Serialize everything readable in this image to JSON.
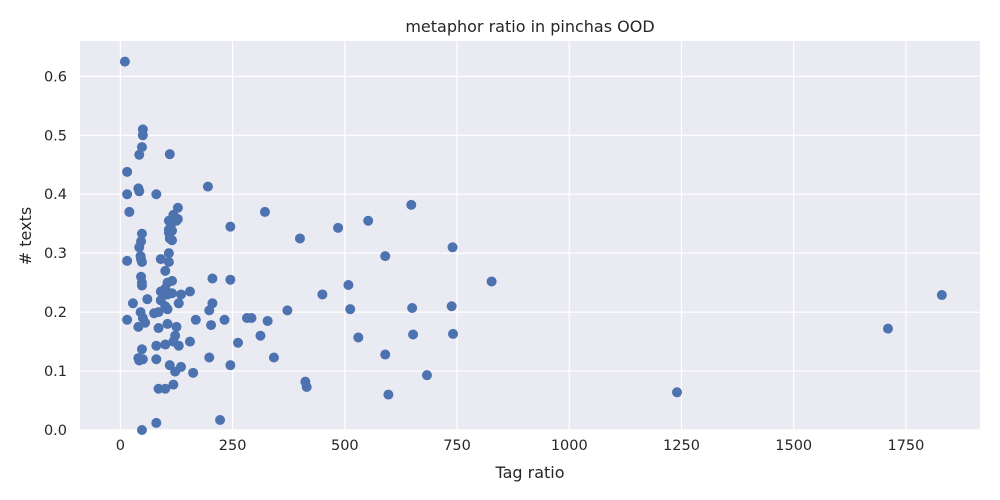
{
  "chart_data": {
    "type": "scatter",
    "title": "metaphor ratio in pinchas OOD",
    "xlabel": "Tag ratio",
    "ylabel": "# texts",
    "xlim": [
      -90,
      1915
    ],
    "ylim": [
      0,
      0.66
    ],
    "xticks": [
      0,
      250,
      500,
      750,
      1000,
      1250,
      1500,
      1750
    ],
    "yticks": [
      0.0,
      0.1,
      0.2,
      0.3,
      0.4,
      0.5,
      0.6
    ],
    "ytick_labels": [
      "0.0",
      "0.1",
      "0.2",
      "0.3",
      "0.4",
      "0.5",
      "0.6"
    ],
    "grid": true,
    "background": "#eaeaf2",
    "marker_color": "#4c72b0",
    "points": [
      [
        10,
        0.625
      ],
      [
        15,
        0.438
      ],
      [
        15,
        0.4
      ],
      [
        20,
        0.37
      ],
      [
        15,
        0.287
      ],
      [
        15,
        0.187
      ],
      [
        28,
        0.215
      ],
      [
        40,
        0.41
      ],
      [
        42,
        0.405
      ],
      [
        42,
        0.467
      ],
      [
        48,
        0.48
      ],
      [
        50,
        0.51
      ],
      [
        50,
        0.5
      ],
      [
        48,
        0.333
      ],
      [
        46,
        0.32
      ],
      [
        42,
        0.31
      ],
      [
        45,
        0.295
      ],
      [
        46,
        0.29
      ],
      [
        48,
        0.285
      ],
      [
        46,
        0.26
      ],
      [
        48,
        0.25
      ],
      [
        48,
        0.245
      ],
      [
        60,
        0.222
      ],
      [
        45,
        0.2
      ],
      [
        50,
        0.19
      ],
      [
        55,
        0.182
      ],
      [
        40,
        0.175
      ],
      [
        40,
        0.122
      ],
      [
        42,
        0.118
      ],
      [
        50,
        0.12
      ],
      [
        48,
        0.137
      ],
      [
        48,
        0.0
      ],
      [
        80,
        0.4
      ],
      [
        80,
        0.143
      ],
      [
        80,
        0.12
      ],
      [
        85,
        0.07
      ],
      [
        80,
        0.012
      ],
      [
        75,
        0.198
      ],
      [
        85,
        0.2
      ],
      [
        85,
        0.173
      ],
      [
        90,
        0.22
      ],
      [
        90,
        0.29
      ],
      [
        90,
        0.235
      ],
      [
        100,
        0.27
      ],
      [
        100,
        0.24
      ],
      [
        100,
        0.21
      ],
      [
        100,
        0.145
      ],
      [
        100,
        0.07
      ],
      [
        105,
        0.25
      ],
      [
        105,
        0.23
      ],
      [
        105,
        0.205
      ],
      [
        105,
        0.18
      ],
      [
        108,
        0.355
      ],
      [
        108,
        0.34
      ],
      [
        108,
        0.335
      ],
      [
        110,
        0.325
      ],
      [
        108,
        0.3
      ],
      [
        108,
        0.285
      ],
      [
        110,
        0.11
      ],
      [
        110,
        0.468
      ],
      [
        112,
        0.345
      ],
      [
        115,
        0.338
      ],
      [
        115,
        0.322
      ],
      [
        115,
        0.253
      ],
      [
        115,
        0.232
      ],
      [
        118,
        0.365
      ],
      [
        118,
        0.15
      ],
      [
        118,
        0.077
      ],
      [
        122,
        0.16
      ],
      [
        122,
        0.099
      ],
      [
        125,
        0.175
      ],
      [
        125,
        0.355
      ],
      [
        128,
        0.358
      ],
      [
        128,
        0.377
      ],
      [
        130,
        0.215
      ],
      [
        130,
        0.143
      ],
      [
        135,
        0.23
      ],
      [
        135,
        0.107
      ],
      [
        155,
        0.235
      ],
      [
        155,
        0.15
      ],
      [
        162,
        0.097
      ],
      [
        168,
        0.187
      ],
      [
        195,
        0.413
      ],
      [
        198,
        0.203
      ],
      [
        198,
        0.123
      ],
      [
        202,
        0.178
      ],
      [
        205,
        0.257
      ],
      [
        205,
        0.215
      ],
      [
        222,
        0.017
      ],
      [
        232,
        0.187
      ],
      [
        245,
        0.345
      ],
      [
        245,
        0.255
      ],
      [
        245,
        0.11
      ],
      [
        262,
        0.148
      ],
      [
        282,
        0.19
      ],
      [
        292,
        0.19
      ],
      [
        312,
        0.16
      ],
      [
        322,
        0.37
      ],
      [
        328,
        0.185
      ],
      [
        342,
        0.123
      ],
      [
        372,
        0.203
      ],
      [
        400,
        0.325
      ],
      [
        412,
        0.082
      ],
      [
        415,
        0.073
      ],
      [
        450,
        0.23
      ],
      [
        485,
        0.343
      ],
      [
        508,
        0.246
      ],
      [
        512,
        0.205
      ],
      [
        530,
        0.157
      ],
      [
        552,
        0.355
      ],
      [
        590,
        0.295
      ],
      [
        590,
        0.128
      ],
      [
        597,
        0.06
      ],
      [
        648,
        0.382
      ],
      [
        650,
        0.207
      ],
      [
        652,
        0.162
      ],
      [
        683,
        0.093
      ],
      [
        738,
        0.21
      ],
      [
        740,
        0.31
      ],
      [
        741,
        0.163
      ],
      [
        827,
        0.252
      ],
      [
        1240,
        0.064
      ],
      [
        1710,
        0.172
      ],
      [
        1830,
        0.229
      ]
    ]
  }
}
